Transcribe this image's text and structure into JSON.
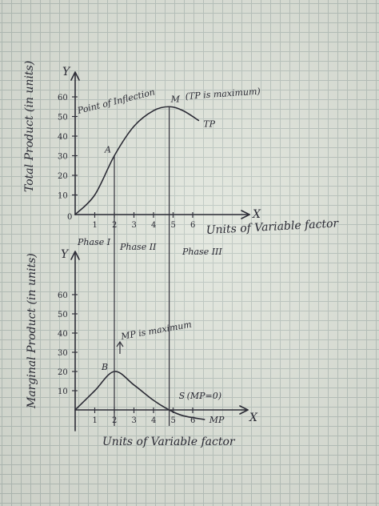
{
  "chart_data": [
    {
      "type": "line",
      "title": "",
      "xlabel": "Units of Variable factor",
      "ylabel": "Total Product (in units)",
      "xlim": [
        0,
        7
      ],
      "ylim": [
        0,
        60
      ],
      "x_ticks": [
        "1",
        "2",
        "3",
        "4",
        "5",
        "6"
      ],
      "y_ticks": [
        "10",
        "20",
        "30",
        "40",
        "50",
        "60"
      ],
      "origin_label": "0",
      "x_axis_symbol": "X",
      "y_axis_symbol": "Y",
      "series": [
        {
          "name": "TP",
          "x": [
            0,
            1,
            2,
            3,
            4,
            4.8,
            5.5,
            6.3
          ],
          "y": [
            0,
            10,
            30,
            45,
            53,
            55,
            53,
            48
          ]
        }
      ],
      "annotations": {
        "point_a": {
          "label": "A",
          "x": 2,
          "y": 30
        },
        "inflection_text": "Point of Inflection",
        "point_m": {
          "label": "M",
          "x": 4.8,
          "y": 55
        },
        "m_note": "(TP is maximum)"
      }
    },
    {
      "type": "line",
      "title": "",
      "xlabel": "Units of Variable factor",
      "ylabel": "Marginal Product (in units)",
      "xlim": [
        0,
        7
      ],
      "ylim": [
        0,
        70
      ],
      "x_ticks": [
        "1",
        "2",
        "3",
        "4",
        "5",
        "6"
      ],
      "y_ticks": [
        "10",
        "20",
        "30",
        "40",
        "50",
        "60"
      ],
      "x_axis_symbol": "X",
      "y_axis_symbol": "Y",
      "series": [
        {
          "name": "MP",
          "x": [
            0,
            1,
            2,
            3,
            4,
            4.8,
            5.5,
            6.6
          ],
          "y": [
            0,
            10,
            20,
            13,
            5,
            0,
            -3,
            -5
          ]
        }
      ],
      "annotations": {
        "point_b": {
          "label": "B",
          "x": 2,
          "y": 20
        },
        "b_note": "MP is maximum",
        "point_s": {
          "label": "S",
          "x": 4.8,
          "y": 0
        },
        "s_note": "(MP=0)"
      }
    }
  ],
  "phases": [
    "Phase I",
    "Phase II",
    "Phase III"
  ]
}
